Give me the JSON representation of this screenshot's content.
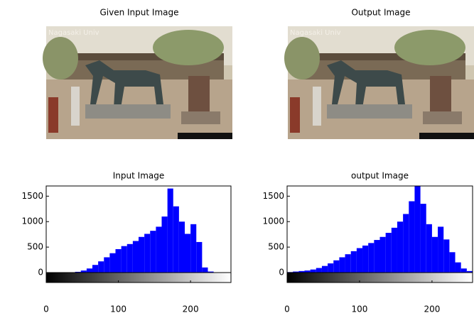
{
  "images": [
    {
      "title": "Given Input Image",
      "watermark": "Nagasaki Univ"
    },
    {
      "title": "Output Image",
      "watermark": "Nagasaki Univ"
    }
  ],
  "chart_data": [
    {
      "type": "histogram",
      "title": "Input Image",
      "bins": [
        0,
        8,
        16,
        24,
        32,
        40,
        48,
        56,
        64,
        72,
        80,
        88,
        96,
        104,
        112,
        120,
        128,
        136,
        144,
        152,
        160,
        168,
        176,
        184,
        192,
        200,
        208,
        216,
        224,
        232,
        240,
        248,
        256
      ],
      "values": [
        0,
        0,
        0,
        2,
        5,
        15,
        40,
        80,
        150,
        220,
        300,
        380,
        460,
        520,
        560,
        620,
        700,
        760,
        820,
        900,
        1100,
        1650,
        1300,
        1000,
        760,
        950,
        600,
        100,
        20,
        5,
        0,
        0
      ],
      "color": "#0000ff",
      "xlim": [
        0,
        256
      ],
      "ylim": [
        0,
        1700
      ],
      "xticks": [
        0,
        100,
        200
      ],
      "yticks": [
        0,
        500,
        1000,
        1500
      ]
    },
    {
      "type": "histogram",
      "title": "output Image",
      "bins": [
        0,
        8,
        16,
        24,
        32,
        40,
        48,
        56,
        64,
        72,
        80,
        88,
        96,
        104,
        112,
        120,
        128,
        136,
        144,
        152,
        160,
        168,
        176,
        184,
        192,
        200,
        208,
        216,
        224,
        232,
        240,
        248,
        256
      ],
      "values": [
        10,
        20,
        30,
        40,
        60,
        90,
        130,
        180,
        240,
        300,
        360,
        420,
        480,
        530,
        580,
        640,
        700,
        780,
        880,
        1000,
        1150,
        1400,
        1700,
        1350,
        950,
        700,
        900,
        650,
        400,
        200,
        80,
        30
      ],
      "color": "#0000ff",
      "xlim": [
        0,
        256
      ],
      "ylim": [
        0,
        1700
      ],
      "xticks": [
        0,
        100,
        200
      ],
      "yticks": [
        0,
        500,
        1000,
        1500
      ]
    }
  ]
}
